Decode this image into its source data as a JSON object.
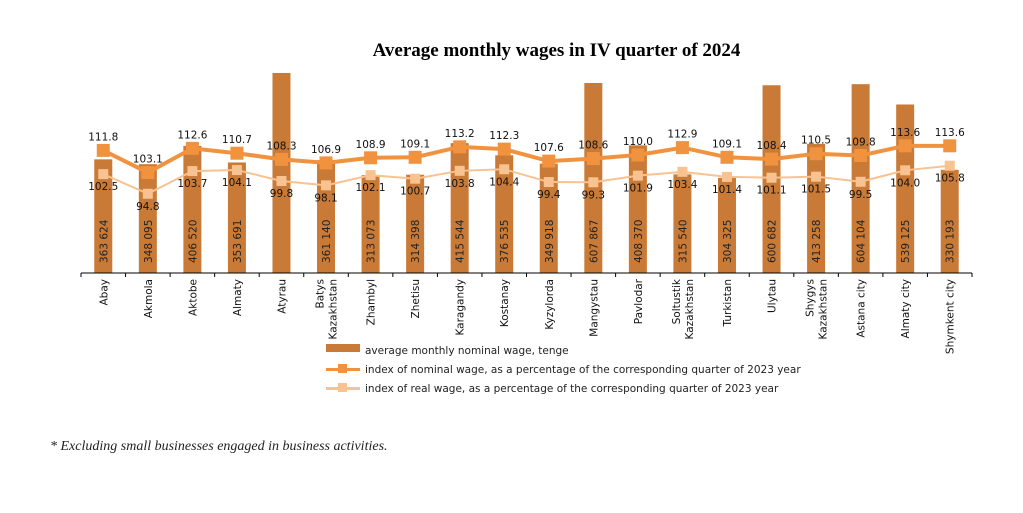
{
  "chart_data": {
    "type": "bar",
    "title": "Average monthly wages in IV quarter of 2024",
    "xlabel": "",
    "ylabel": "",
    "grid": false,
    "legend_position": "bottom",
    "categories": [
      "Abay",
      "Akmola",
      "Aktobe",
      "Almaty",
      "Atyrau",
      "Batys\nKazakhstan",
      "Zhambyl",
      "Zhetisu",
      "Karagandy",
      "Kostanay",
      "Kyzylorda",
      "Mangystau",
      "Pavlodar",
      "Soltustik\nKazakhstan",
      "Turkistan",
      "Ulytau",
      "Shygys\nKazakhstan",
      "Astana city",
      "Almaty city",
      "Shymkent city"
    ],
    "series": [
      {
        "name": "average monthly nominal wage, tenge",
        "kind": "bar",
        "color": "#c97a36",
        "values": [
          363624,
          348095,
          406520,
          353691,
          640000,
          361140,
          313073,
          314398,
          415544,
          376535,
          349918,
          607867,
          408370,
          315540,
          304325,
          600682,
          413258,
          604104,
          539125,
          330193
        ],
        "labels": [
          "363 624",
          "348 095",
          "406 520",
          "353 691",
          "",
          "361 140",
          "313 073",
          "314 398",
          "415 544",
          "376 535",
          "349 918",
          "607 867",
          "408 370",
          "315 540",
          "304 325",
          "600 682",
          "413 258",
          "604 104",
          "539 125",
          "330 193"
        ]
      },
      {
        "name": "index of nominal wage,  as a percentage of the corresponding quarter of 2023 year",
        "kind": "line",
        "color": "#f0923e",
        "values": [
          111.8,
          103.1,
          112.6,
          110.7,
          108.3,
          106.9,
          108.9,
          109.1,
          113.2,
          112.3,
          107.6,
          108.6,
          110.0,
          112.9,
          109.1,
          108.4,
          110.5,
          109.8,
          113.6,
          113.6
        ],
        "labels": [
          "111.8",
          "103.1",
          "112.6",
          "110.7",
          "108.3",
          "106.9",
          "108.9",
          "109.1",
          "113.2",
          "112.3",
          "107.6",
          "108.6",
          "110.0",
          "112.9",
          "109.1",
          "108.4",
          "110.5",
          "109.8",
          "113.6",
          "113.6"
        ]
      },
      {
        "name": "index of real wage, as a percentage of the corresponding quarter of 2023 year",
        "kind": "line",
        "color": "#f8c291",
        "values": [
          102.5,
          94.8,
          103.7,
          104.1,
          99.8,
          98.1,
          102.1,
          100.7,
          103.8,
          104.4,
          99.4,
          99.3,
          101.9,
          103.4,
          101.4,
          101.1,
          101.5,
          99.5,
          104.0,
          105.8
        ],
        "labels": [
          "102.5",
          "94.8",
          "103.7",
          "104.1",
          "99.8",
          "98.1",
          "102.1",
          "100.7",
          "103.8",
          "104.4",
          "99.4",
          "99.3",
          "101.9",
          "103.4",
          "101.4",
          "101.1",
          "101.5",
          "99.5",
          "104.0",
          "105.8"
        ]
      }
    ]
  },
  "legend": {
    "bar": "average monthly nominal wage, tenge",
    "nominal": "index of nominal wage,  as a percentage of the corresponding quarter of 2023 year",
    "real": "index of real wage, as a percentage of the corresponding quarter of 2023 year"
  },
  "footnote": "* Excluding small businesses engaged in business activities."
}
